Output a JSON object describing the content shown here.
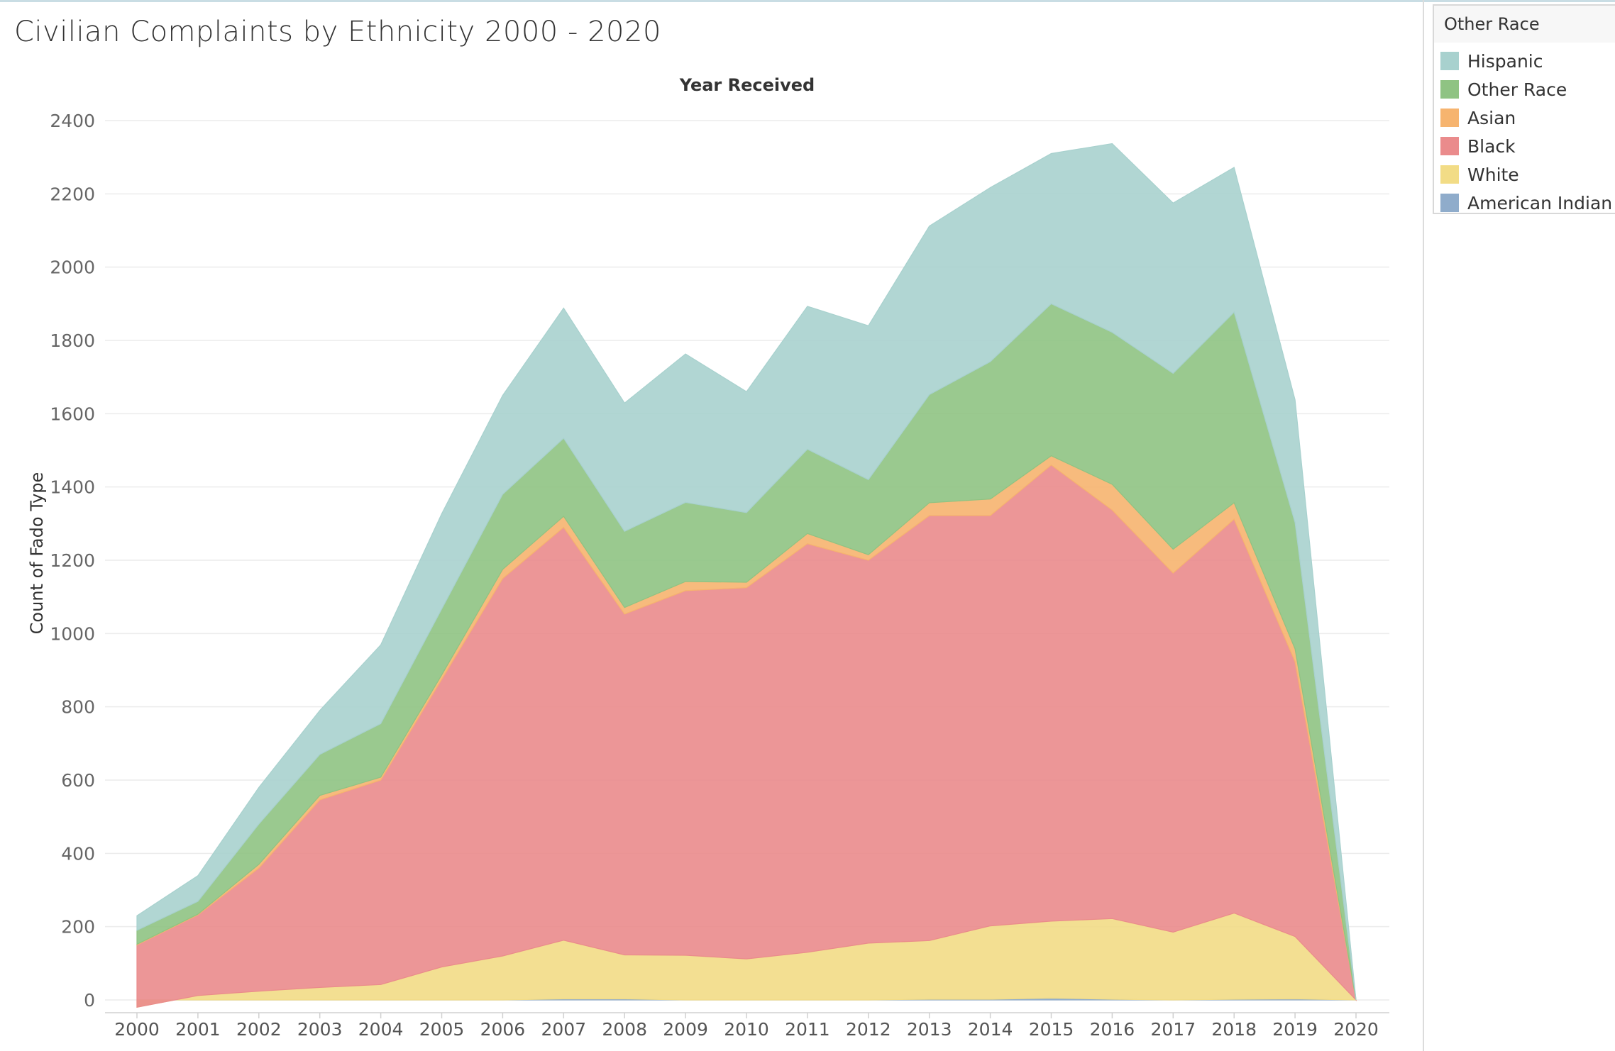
{
  "title": "Civilian Complaints by Ethnicity 2000 - 2020",
  "legend": {
    "title": "Other Race",
    "items": [
      {
        "label": "Hispanic",
        "color": "#a8d1ce"
      },
      {
        "label": "Other Race",
        "color": "#8fc383"
      },
      {
        "label": "Asian",
        "color": "#f6b46f"
      },
      {
        "label": "Black",
        "color": "#ea8b8c"
      },
      {
        "label": "White",
        "color": "#f2dc86"
      },
      {
        "label": "American Indian",
        "color": "#8faccb"
      }
    ]
  },
  "chart_data": {
    "type": "area",
    "stacked": true,
    "title": "Civilian Complaints by Ethnicity 2000 - 2020",
    "xlabel": "Year Received",
    "ylabel": "Count of Fado Type",
    "ylim": [
      -30,
      2420
    ],
    "y_ticks": [
      0,
      200,
      400,
      600,
      800,
      1000,
      1200,
      1400,
      1600,
      1800,
      2000,
      2200,
      2400
    ],
    "grid": true,
    "legend_position": "top-right",
    "x": [
      "2000",
      "2001",
      "2002",
      "2003",
      "2004",
      "2005",
      "2006",
      "2007",
      "2008",
      "2009",
      "2010",
      "2011",
      "2012",
      "2013",
      "2014",
      "2015",
      "2016",
      "2017",
      "2018",
      "2019",
      "2020"
    ],
    "series": [
      {
        "name": "American Indian",
        "color": "#8faccb",
        "values": [
          0,
          0,
          0,
          0,
          0,
          0,
          0,
          3,
          3,
          0,
          0,
          0,
          0,
          2,
          2,
          5,
          2,
          0,
          2,
          3,
          0
        ]
      },
      {
        "name": "White",
        "color": "#f2dc86",
        "values": [
          -20,
          12,
          24,
          34,
          42,
          90,
          120,
          160,
          120,
          122,
          112,
          130,
          155,
          160,
          200,
          210,
          220,
          185,
          235,
          170,
          0
        ]
      },
      {
        "name": "Black",
        "color": "#ea8b8c",
        "values": [
          170,
          220,
          336,
          512,
          558,
          785,
          1030,
          1127,
          930,
          995,
          1013,
          1115,
          1045,
          1160,
          1120,
          1245,
          1115,
          980,
          1075,
          750,
          0
        ]
      },
      {
        "name": "Asian",
        "color": "#f6b46f",
        "values": [
          2,
          2,
          10,
          12,
          8,
          12,
          25,
          30,
          18,
          25,
          15,
          28,
          15,
          35,
          45,
          25,
          70,
          65,
          45,
          35,
          0
        ]
      },
      {
        "name": "Other Race",
        "color": "#8fc383",
        "values": [
          38,
          35,
          110,
          112,
          146,
          180,
          205,
          213,
          208,
          216,
          190,
          230,
          205,
          295,
          375,
          415,
          415,
          480,
          520,
          345,
          0
        ]
      },
      {
        "name": "Hispanic",
        "color": "#a8d1ce",
        "values": [
          40,
          70,
          100,
          120,
          215,
          260,
          270,
          355,
          350,
          405,
          330,
          390,
          420,
          460,
          475,
          410,
          515,
          465,
          395,
          335,
          0
        ]
      }
    ]
  }
}
